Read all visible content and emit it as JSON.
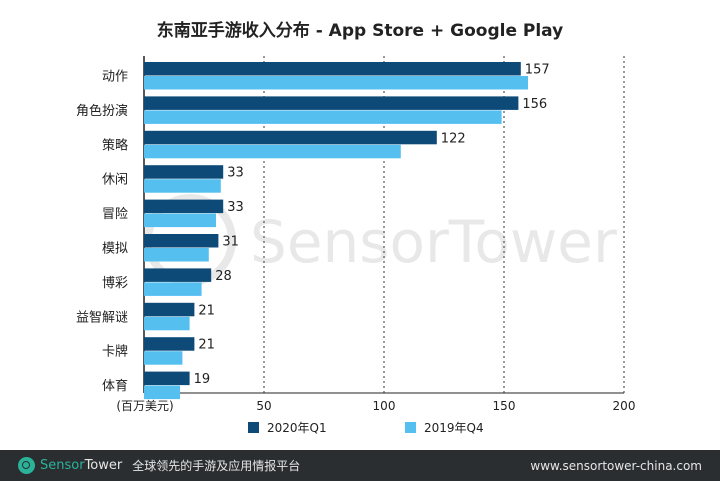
{
  "chart_data": {
    "type": "bar",
    "orientation": "horizontal",
    "title": "东南亚手游收入分布 - App Store + Google Play",
    "xlabel": "(百万美元)",
    "categories": [
      "动作",
      "角色扮演",
      "策略",
      "休闲",
      "冒险",
      "模拟",
      "博彩",
      "益智解谜",
      "卡牌",
      "体育"
    ],
    "series": [
      {
        "name": "2020年Q1",
        "color": "#0d4a78",
        "values": [
          157,
          156,
          122,
          33,
          33,
          31,
          28,
          21,
          21,
          19
        ],
        "labeled": true
      },
      {
        "name": "2019年Q4",
        "color": "#55bff0",
        "values": [
          160,
          149,
          107,
          32,
          30,
          27,
          24,
          19,
          16,
          15
        ],
        "labeled": false
      }
    ],
    "xlim": [
      0,
      200
    ],
    "xticks": [
      50,
      100,
      150,
      200
    ],
    "grid": "vertical dotted",
    "legend": "bottom"
  },
  "watermark": "SensorTower",
  "footer": {
    "brand_a": "Sensor",
    "brand_b": "Tower",
    "tagline": "全球领先的手游及应用情报平台",
    "url": "www.sensortower-china.com"
  }
}
